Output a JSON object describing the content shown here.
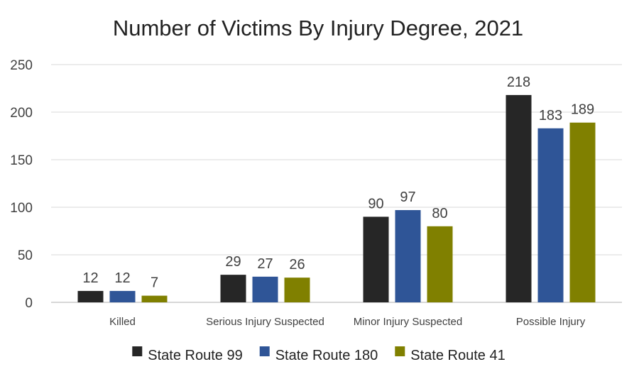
{
  "chart_data": {
    "type": "bar",
    "title": "Number of Victims By Injury Degree, 2021",
    "xlabel": "",
    "ylabel": "",
    "categories": [
      "Killed",
      "Serious Injury Suspected",
      "Minor Injury Suspected",
      "Possible Injury"
    ],
    "series": [
      {
        "name": "State Route 99",
        "values": [
          12,
          29,
          90,
          218
        ],
        "color": "#262626"
      },
      {
        "name": "State Route 180",
        "values": [
          12,
          27,
          97,
          183
        ],
        "color": "#2f5597"
      },
      {
        "name": "State Route 41",
        "values": [
          7,
          26,
          80,
          189
        ],
        "color": "#808000"
      }
    ],
    "ylim": [
      0,
      250
    ],
    "yticks": [
      0,
      50,
      100,
      150,
      200,
      250
    ],
    "grid": true,
    "legend_position": "bottom"
  }
}
